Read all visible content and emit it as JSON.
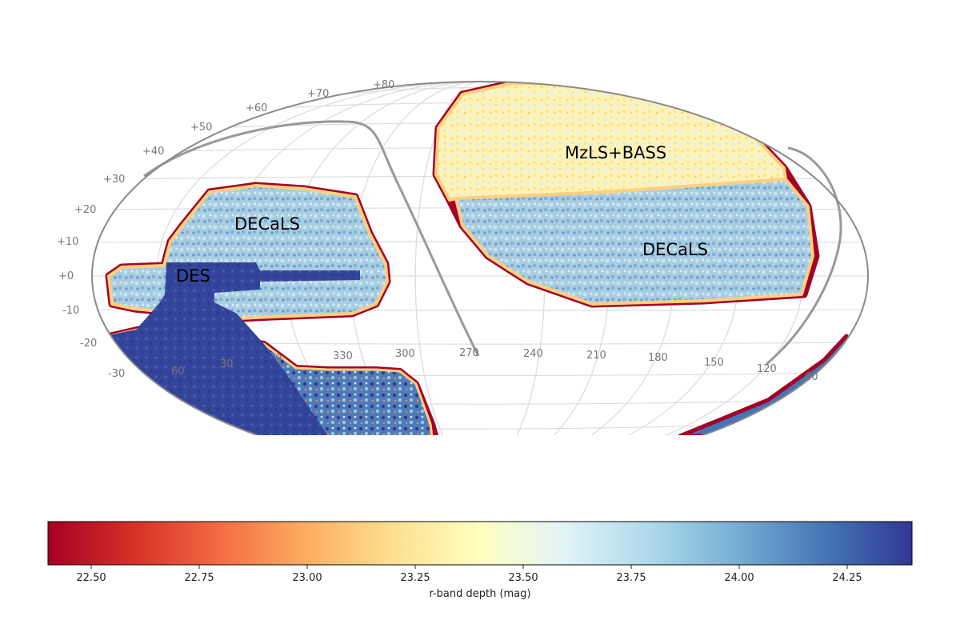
{
  "map": {
    "projection": "Mollweide",
    "dec_tick_labels": [
      "+80",
      "+70",
      "+60",
      "+50",
      "+40",
      "+30",
      "+20",
      "+10",
      "+0",
      "-10",
      "-20",
      "-30"
    ],
    "ra_tick_labels": [
      "330",
      "300",
      "270",
      "240",
      "210",
      "180",
      "150",
      "120",
      "60",
      "30",
      "0",
      "60"
    ],
    "survey_labels": {
      "north": "MzLS+BASS",
      "decals_east": "DECaLS",
      "decals_west": "DECaLS",
      "des": "DES"
    },
    "colors": {
      "shallow": "#a50026",
      "mid": "#ffffbf",
      "deep": "#313695",
      "graticule": "#dddddd",
      "border": "#8a8a8a",
      "galactic_plane": "#999999"
    }
  },
  "colorbar": {
    "label": "r-band depth (mag)",
    "min": 22.4,
    "max": 24.4,
    "tick_labels": [
      "22.50",
      "22.75",
      "23.00",
      "23.25",
      "23.50",
      "23.75",
      "24.00",
      "24.25"
    ],
    "colormap": "RdYlBu",
    "stops": [
      "#a50026",
      "#d73027",
      "#f46d43",
      "#fdae61",
      "#fee090",
      "#ffffbf",
      "#e0f3f8",
      "#abd9e9",
      "#74add1",
      "#4575b4",
      "#313695"
    ]
  }
}
